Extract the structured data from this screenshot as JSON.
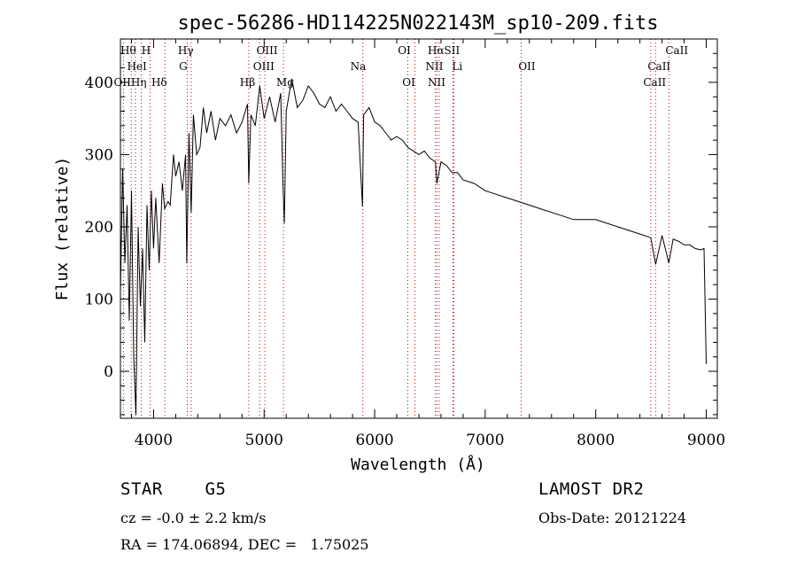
{
  "chart_data": {
    "type": "line",
    "title": "spec-56286-HD114225N022143M_sp10-209.fits",
    "xlabel": "Wavelength (Å)",
    "ylabel": "Flux (relative)",
    "xlim": [
      3700,
      9100
    ],
    "ylim": [
      -65,
      460
    ],
    "xticks": [
      4000,
      5000,
      6000,
      7000,
      8000,
      9000
    ],
    "yticks": [
      0,
      100,
      200,
      300,
      400
    ],
    "grid": false,
    "line_color": "#000000",
    "marker_color": "#cc0000",
    "series": [
      {
        "x": [
          3700,
          3720,
          3740,
          3760,
          3780,
          3800,
          3820,
          3840,
          3860,
          3880,
          3900,
          3920,
          3940,
          3960,
          3980,
          4000,
          4020,
          4050,
          4080,
          4100,
          4130,
          4150,
          4180,
          4200,
          4230,
          4260,
          4290,
          4300,
          4320,
          4340,
          4360,
          4390,
          4420,
          4450,
          4480,
          4520,
          4560,
          4600,
          4650,
          4700,
          4750,
          4800,
          4850,
          4861,
          4880,
          4920,
          4960,
          5000,
          5050,
          5100,
          5150,
          5170,
          5183,
          5200,
          5250,
          5300,
          5350,
          5400,
          5450,
          5500,
          5550,
          5600,
          5650,
          5700,
          5750,
          5800,
          5850,
          5890,
          5900,
          5950,
          6000,
          6050,
          6100,
          6150,
          6200,
          6250,
          6300,
          6350,
          6400,
          6450,
          6500,
          6550,
          6563,
          6600,
          6650,
          6700,
          6750,
          6800,
          6900,
          7000,
          7100,
          7200,
          7300,
          7400,
          7500,
          7600,
          7700,
          7800,
          7900,
          8000,
          8100,
          8200,
          8300,
          8400,
          8498,
          8542,
          8600,
          8662,
          8700,
          8750,
          8800,
          8850,
          8900,
          8950,
          8980,
          9000
        ],
        "y": [
          110,
          280,
          150,
          230,
          70,
          250,
          20,
          -60,
          200,
          90,
          170,
          40,
          230,
          140,
          250,
          170,
          240,
          150,
          260,
          225,
          235,
          230,
          300,
          270,
          290,
          250,
          300,
          150,
          330,
          220,
          355,
          300,
          310,
          365,
          330,
          360,
          320,
          350,
          340,
          355,
          330,
          345,
          370,
          260,
          355,
          340,
          395,
          350,
          380,
          345,
          385,
          260,
          205,
          360,
          405,
          365,
          375,
          395,
          385,
          370,
          365,
          380,
          360,
          370,
          360,
          350,
          345,
          228,
          355,
          365,
          345,
          340,
          330,
          320,
          325,
          320,
          310,
          305,
          300,
          305,
          295,
          290,
          260,
          290,
          285,
          275,
          275,
          265,
          260,
          250,
          245,
          240,
          235,
          230,
          225,
          220,
          215,
          210,
          210,
          210,
          205,
          200,
          195,
          190,
          185,
          148,
          188,
          150,
          183,
          180,
          175,
          175,
          170,
          168,
          170,
          10
        ]
      }
    ],
    "lines": [
      {
        "name": "Hθ",
        "x": 3798
      },
      {
        "name": "OII",
        "x": 3727
      },
      {
        "name": "Hη",
        "x": 3835
      },
      {
        "name": "HeI",
        "x": 3889
      },
      {
        "name": "H",
        "x": 3968
      },
      {
        "name": "Hδ",
        "x": 4102
      },
      {
        "name": "Hγ",
        "x": 4340
      },
      {
        "name": "G",
        "x": 4305
      },
      {
        "name": "Hβ",
        "x": 4861
      },
      {
        "name": "OIII",
        "x": 4959
      },
      {
        "name": "OIII",
        "x": 5007
      },
      {
        "name": "Mg",
        "x": 5175
      },
      {
        "name": "Na",
        "x": 5893
      },
      {
        "name": "OI",
        "x": 6300
      },
      {
        "name": "OI",
        "x": 6364
      },
      {
        "name": "Hα",
        "x": 6563
      },
      {
        "name": "NII",
        "x": 6548
      },
      {
        "name": "NII",
        "x": 6584
      },
      {
        "name": "SII",
        "x": 6717
      },
      {
        "name": "Li",
        "x": 6708
      },
      {
        "name": "OII",
        "x": 7325
      },
      {
        "name": "CaII",
        "x": 8498
      },
      {
        "name": "CaII",
        "x": 8542
      },
      {
        "name": "CaII",
        "x": 8662
      }
    ],
    "labels": [
      {
        "text": "Hθ",
        "x": 3700,
        "row": 0
      },
      {
        "text": "H",
        "x": 3890,
        "row": 0
      },
      {
        "text": "Hγ",
        "x": 4220,
        "row": 0
      },
      {
        "text": "OIII",
        "x": 4930,
        "row": 0
      },
      {
        "text": "OI",
        "x": 6210,
        "row": 0
      },
      {
        "text": "HαSII",
        "x": 6480,
        "row": 0
      },
      {
        "text": "CaII",
        "x": 8630,
        "row": 0
      },
      {
        "text": "HeI",
        "x": 3760,
        "row": 1
      },
      {
        "text": "G",
        "x": 4230,
        "row": 1
      },
      {
        "text": "OIII",
        "x": 4900,
        "row": 1
      },
      {
        "text": "Na",
        "x": 5780,
        "row": 1
      },
      {
        "text": "NII",
        "x": 6460,
        "row": 1
      },
      {
        "text": "Li",
        "x": 6700,
        "row": 1
      },
      {
        "text": "OII",
        "x": 7300,
        "row": 1
      },
      {
        "text": "CaII",
        "x": 8470,
        "row": 1
      },
      {
        "text": "OIIHη",
        "x": 3640,
        "row": 2
      },
      {
        "text": "Hδ",
        "x": 3980,
        "row": 2
      },
      {
        "text": "Hβ",
        "x": 4780,
        "row": 2
      },
      {
        "text": "Mg",
        "x": 5110,
        "row": 2
      },
      {
        "text": "OI",
        "x": 6250,
        "row": 2
      },
      {
        "text": "NII",
        "x": 6480,
        "row": 2
      },
      {
        "text": "CaII",
        "x": 8430,
        "row": 2
      }
    ]
  },
  "info": {
    "object_type": "STAR    G5",
    "survey": "LAMOST DR2",
    "cz": "cz = -0.0 ± 2.2 km/s",
    "obs_date": "Obs-Date: 20121224",
    "coords": "RA = 174.06894, DEC =   1.75025"
  }
}
